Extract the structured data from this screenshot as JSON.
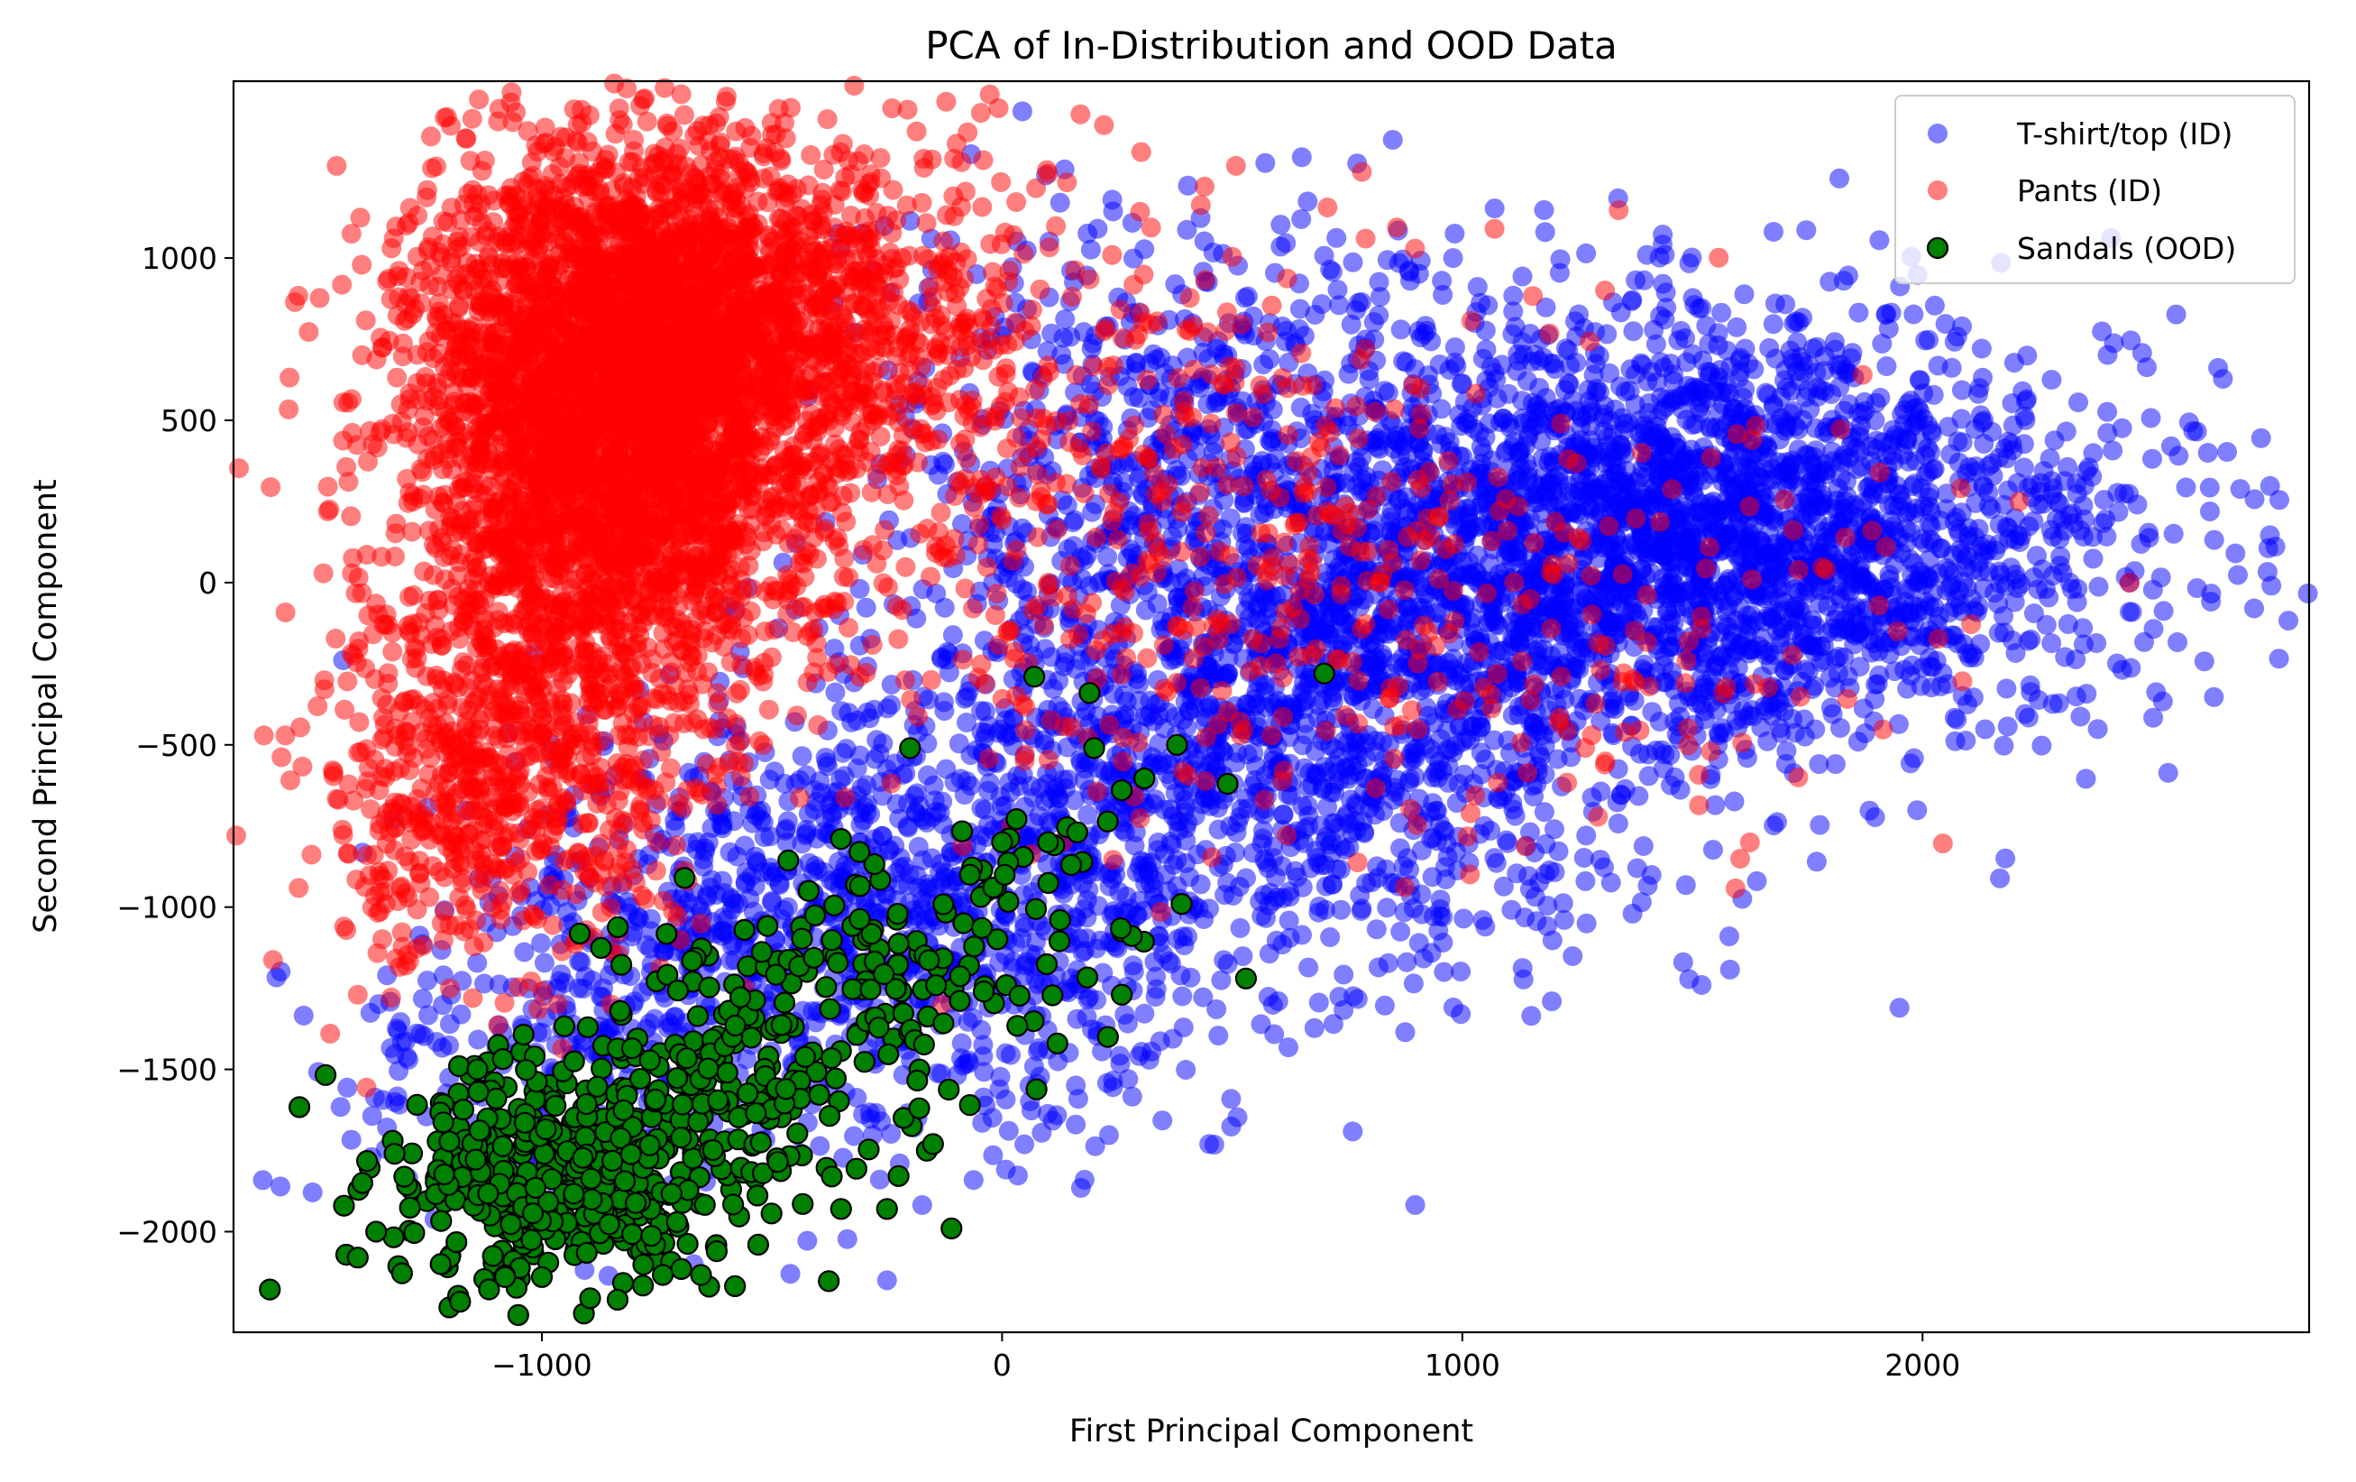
{
  "chart_data": {
    "type": "scatter",
    "title": "PCA of In-Distribution and OOD Data",
    "xlabel": "First Principal Component",
    "ylabel": "Second Principal Component",
    "xlim": [
      -1670,
      2840
    ],
    "ylim": [
      -2310,
      1545
    ],
    "xticks": [
      -1000,
      0,
      1000,
      2000
    ],
    "xtick_labels": [
      "−1000",
      "0",
      "1000",
      "2000"
    ],
    "yticks": [
      -2000,
      -1500,
      -1000,
      -500,
      0,
      500,
      1000
    ],
    "ytick_labels": [
      "−2000",
      "−1500",
      "−1000",
      "−500",
      "0",
      "500",
      "1000"
    ],
    "grid": false,
    "legend_position": "top-right",
    "series": [
      {
        "name": "T-shirt/top (ID)",
        "color": "#0000ff",
        "opacity": 0.5,
        "edge": "none",
        "approx_count": 6000,
        "clusters": [
          {
            "cx": 1500,
            "cy": 150,
            "sx": 480,
            "sy": 330,
            "n": 2700
          },
          {
            "cx": 600,
            "cy": -400,
            "sx": 420,
            "sy": 380,
            "n": 1500
          },
          {
            "cx": -300,
            "cy": -1050,
            "sx": 380,
            "sy": 330,
            "n": 1100
          },
          {
            "cx": 400,
            "cy": 500,
            "sx": 400,
            "sy": 350,
            "n": 500
          },
          {
            "cx": -1050,
            "cy": -1500,
            "sx": 250,
            "sy": 250,
            "n": 200
          }
        ],
        "sample_points": [
          [
            2680,
            90
          ],
          [
            2620,
            400
          ],
          [
            2540,
            420
          ],
          [
            2450,
            -90
          ],
          [
            2230,
            -180
          ],
          [
            2180,
            -850
          ],
          [
            1950,
            -1310
          ],
          [
            1860,
            -490
          ],
          [
            1640,
            -920
          ],
          [
            1580,
            -1090
          ],
          [
            1520,
            -1240
          ],
          [
            1480,
            -1170
          ],
          [
            1380,
            -880
          ],
          [
            1270,
            -1050
          ],
          [
            1200,
            -760
          ],
          [
            1050,
            -1060
          ],
          [
            960,
            -1200
          ],
          [
            720,
            -1360
          ],
          [
            600,
            -1290
          ],
          [
            450,
            -1730
          ],
          [
            320,
            -1470
          ],
          [
            160,
            -1670
          ],
          [
            -250,
            -2150
          ],
          [
            -460,
            -2130
          ],
          [
            -670,
            -2100
          ],
          [
            1440,
            1010
          ],
          [
            1180,
            1080
          ],
          [
            980,
            1000
          ],
          [
            650,
            1120
          ],
          [
            1680,
            860
          ],
          [
            2450,
            0
          ],
          [
            2320,
            0
          ],
          [
            -1370,
            -1770
          ],
          [
            -1290,
            -1470
          ],
          [
            -920,
            -1250
          ],
          [
            -1200,
            -1360
          ]
        ]
      },
      {
        "name": "Pants (ID)",
        "color": "#ff0000",
        "opacity": 0.5,
        "edge": "none",
        "approx_count": 6000,
        "clusters": [
          {
            "cx": -850,
            "cy": 500,
            "sx": 230,
            "sy": 420,
            "n": 3500
          },
          {
            "cx": -550,
            "cy": 800,
            "sx": 300,
            "sy": 280,
            "n": 1200
          },
          {
            "cx": -1100,
            "cy": -600,
            "sx": 200,
            "sy": 300,
            "n": 700
          },
          {
            "cx": 300,
            "cy": 200,
            "sx": 450,
            "sy": 450,
            "n": 400
          },
          {
            "cx": 1000,
            "cy": -100,
            "sx": 500,
            "sy": 350,
            "n": 200
          }
        ],
        "sample_points": [
          [
            -1460,
            -1390
          ],
          [
            -1400,
            -1270
          ],
          [
            -1430,
            -1060
          ],
          [
            -1380,
            -840
          ],
          [
            -1340,
            -600
          ],
          [
            -1300,
            -370
          ],
          [
            -1280,
            250
          ],
          [
            -1180,
            700
          ],
          [
            -1050,
            960
          ],
          [
            -900,
            1080
          ],
          [
            -720,
            1260
          ],
          [
            -560,
            1270
          ],
          [
            -480,
            1300
          ],
          [
            -300,
            1320
          ],
          [
            100,
            1260
          ],
          [
            440,
            1220
          ],
          [
            790,
            1060
          ],
          [
            1070,
            1090
          ],
          [
            1310,
            900
          ],
          [
            1390,
            400
          ],
          [
            1630,
            440
          ],
          [
            1870,
            640
          ],
          [
            2210,
            250
          ],
          [
            2450,
            0
          ],
          [
            1920,
            110
          ],
          [
            1730,
            -600
          ],
          [
            1540,
            -520
          ],
          [
            -130,
            -1300
          ],
          [
            -560,
            -1250
          ],
          [
            -700,
            -1100
          ],
          [
            -900,
            -900
          ],
          [
            -1200,
            -1250
          ]
        ]
      },
      {
        "name": "Sandals (OOD)",
        "color": "#008000",
        "edgecolor": "#000000",
        "opacity": 1.0,
        "approx_count": 700,
        "clusters": [
          {
            "cx": -950,
            "cy": -1820,
            "sx": 190,
            "sy": 170,
            "n": 430
          },
          {
            "cx": -600,
            "cy": -1480,
            "sx": 180,
            "sy": 200,
            "n": 150
          },
          {
            "cx": -300,
            "cy": -1250,
            "sx": 150,
            "sy": 180,
            "n": 80
          },
          {
            "cx": 50,
            "cy": -1050,
            "sx": 150,
            "sy": 200,
            "n": 40
          }
        ],
        "sample_points": [
          [
            -1430,
            -1920
          ],
          [
            -1400,
            -2080
          ],
          [
            -1390,
            -1850
          ],
          [
            -1360,
            -2000
          ],
          [
            -1320,
            -1760
          ],
          [
            -1220,
            -2100
          ],
          [
            -1180,
            -1490
          ],
          [
            -1140,
            -1500
          ],
          [
            -1080,
            -2140
          ],
          [
            -1000,
            -2140
          ],
          [
            -900,
            -1370
          ],
          [
            -830,
            -1320
          ],
          [
            -690,
            -910
          ],
          [
            -620,
            -2060
          ],
          [
            -560,
            -1070
          ],
          [
            -530,
            -2040
          ],
          [
            -420,
            -950
          ],
          [
            -370,
            -1830
          ],
          [
            -350,
            -790
          ],
          [
            -350,
            -1930
          ],
          [
            -310,
            -830
          ],
          [
            -250,
            -1930
          ],
          [
            -180,
            -1620
          ],
          [
            -150,
            -1730
          ],
          [
            -110,
            -1990
          ],
          [
            -70,
            -1610
          ],
          [
            -70,
            -900
          ],
          [
            -40,
            -1260
          ],
          [
            0,
            -800
          ],
          [
            70,
            -290
          ],
          [
            100,
            -800
          ],
          [
            190,
            -340
          ],
          [
            200,
            -510
          ],
          [
            230,
            -1400
          ],
          [
            260,
            -1270
          ],
          [
            260,
            -640
          ],
          [
            380,
            -500
          ],
          [
            390,
            -990
          ],
          [
            490,
            -620
          ],
          [
            530,
            -1220
          ],
          [
            700,
            -280
          ],
          [
            120,
            -1420
          ],
          [
            150,
            -870
          ],
          [
            -200,
            -510
          ]
        ]
      }
    ]
  }
}
